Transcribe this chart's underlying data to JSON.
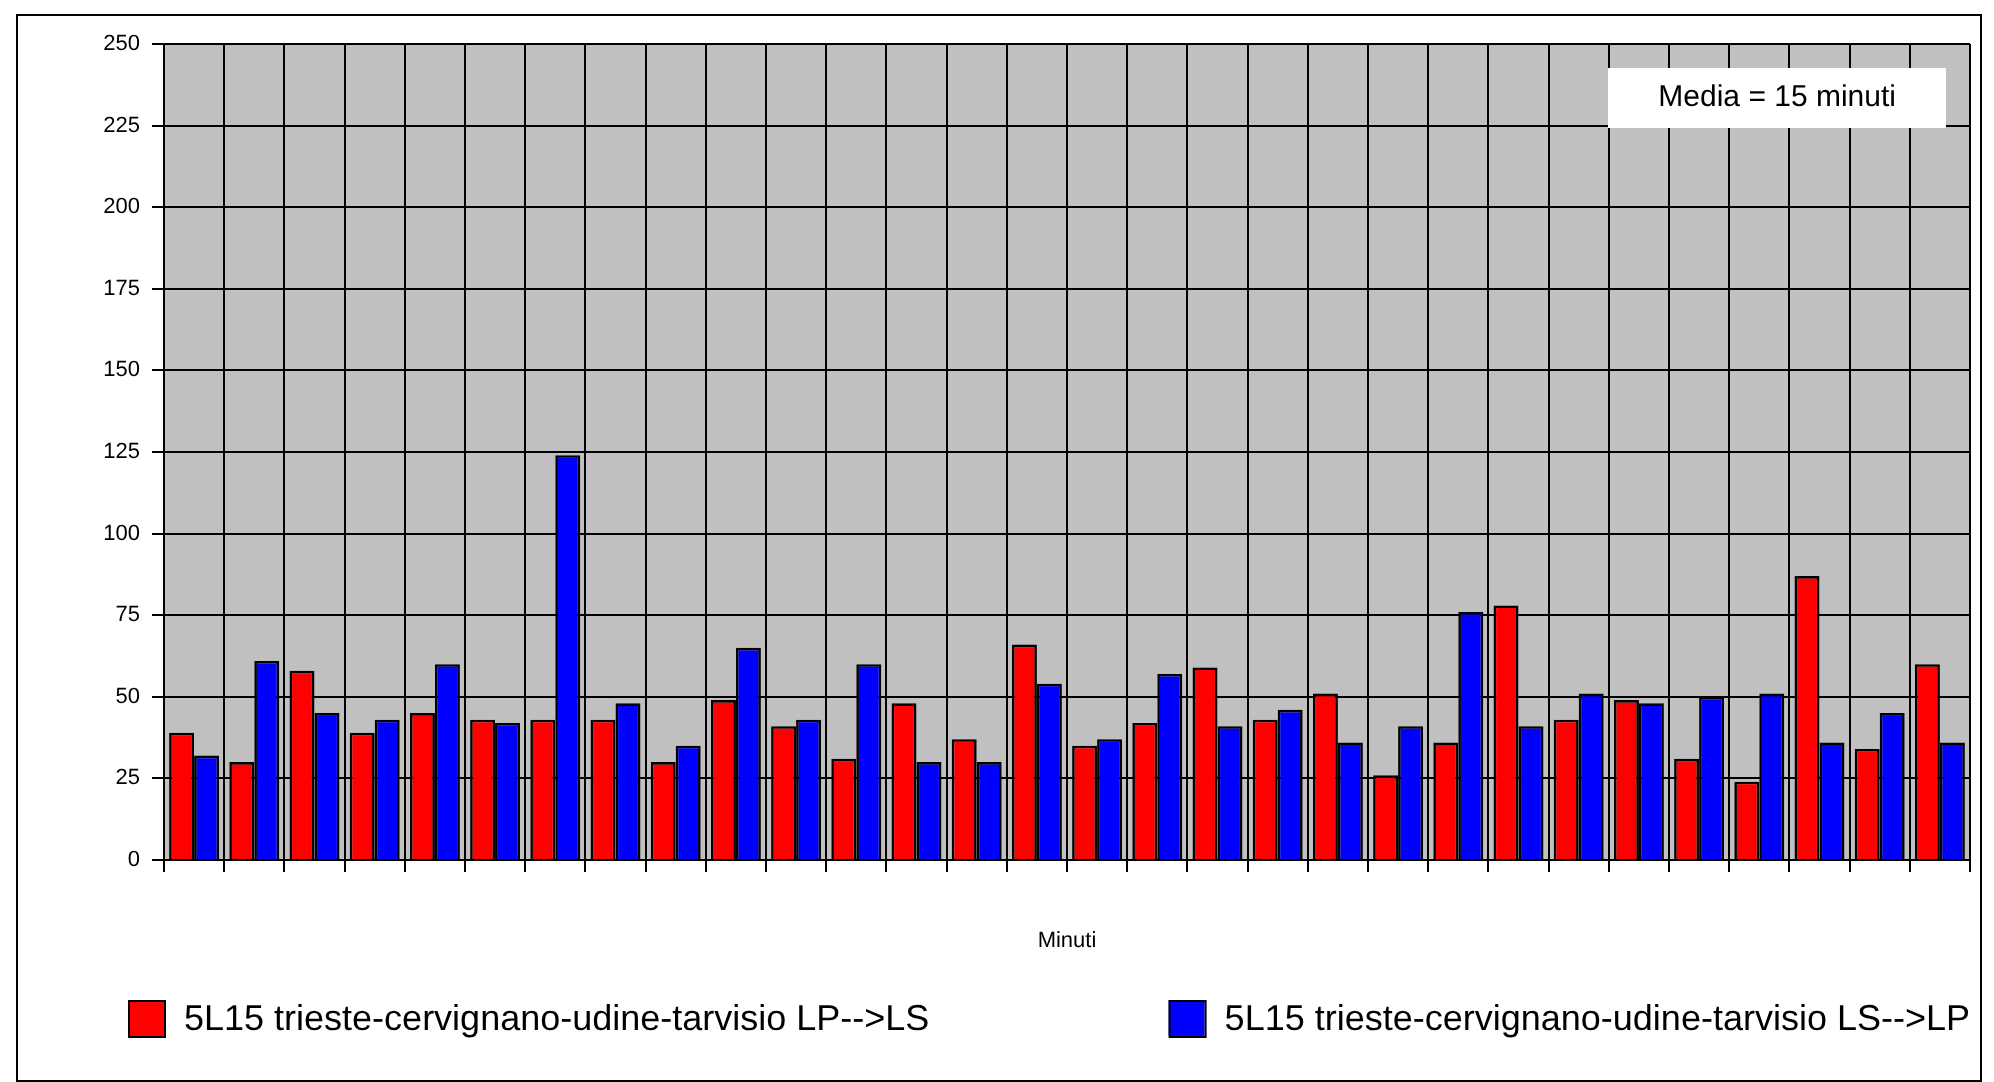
{
  "chart_data": {
    "type": "bar",
    "xlabel": "Minuti",
    "annotations": [
      "Media = 15 minuti"
    ],
    "categories": [
      null,
      null,
      null,
      null,
      null,
      null,
      null,
      null,
      null,
      null,
      null,
      null,
      null,
      null,
      null,
      null,
      null,
      null,
      null,
      null,
      null,
      null,
      null,
      null,
      null,
      null,
      null,
      null,
      null,
      null
    ],
    "series": [
      {
        "name": "5L15 trieste-cervignano-udine-tarvisio LP-->LS",
        "color": "#ff0000",
        "values": [
          39,
          30,
          58,
          39,
          45,
          43,
          43,
          43,
          30,
          49,
          41,
          31,
          48,
          37,
          66,
          35,
          42,
          59,
          43,
          51,
          26,
          36,
          78,
          43,
          49,
          31,
          24,
          87,
          34,
          60
        ]
      },
      {
        "name": "5L15 trieste-cervignano-udine-tarvisio LS-->LP",
        "color": "#0000ff",
        "values": [
          32,
          61,
          45,
          43,
          60,
          42,
          124,
          48,
          35,
          65,
          43,
          60,
          30,
          30,
          54,
          37,
          57,
          41,
          46,
          36,
          41,
          76,
          41,
          51,
          48,
          50,
          51,
          36,
          45,
          36
        ]
      }
    ],
    "ylim": [
      0,
      250
    ],
    "yticks": [
      0,
      25,
      50,
      75,
      100,
      125,
      150,
      175,
      200,
      225,
      250
    ],
    "grid": true,
    "legend": "bottom"
  }
}
